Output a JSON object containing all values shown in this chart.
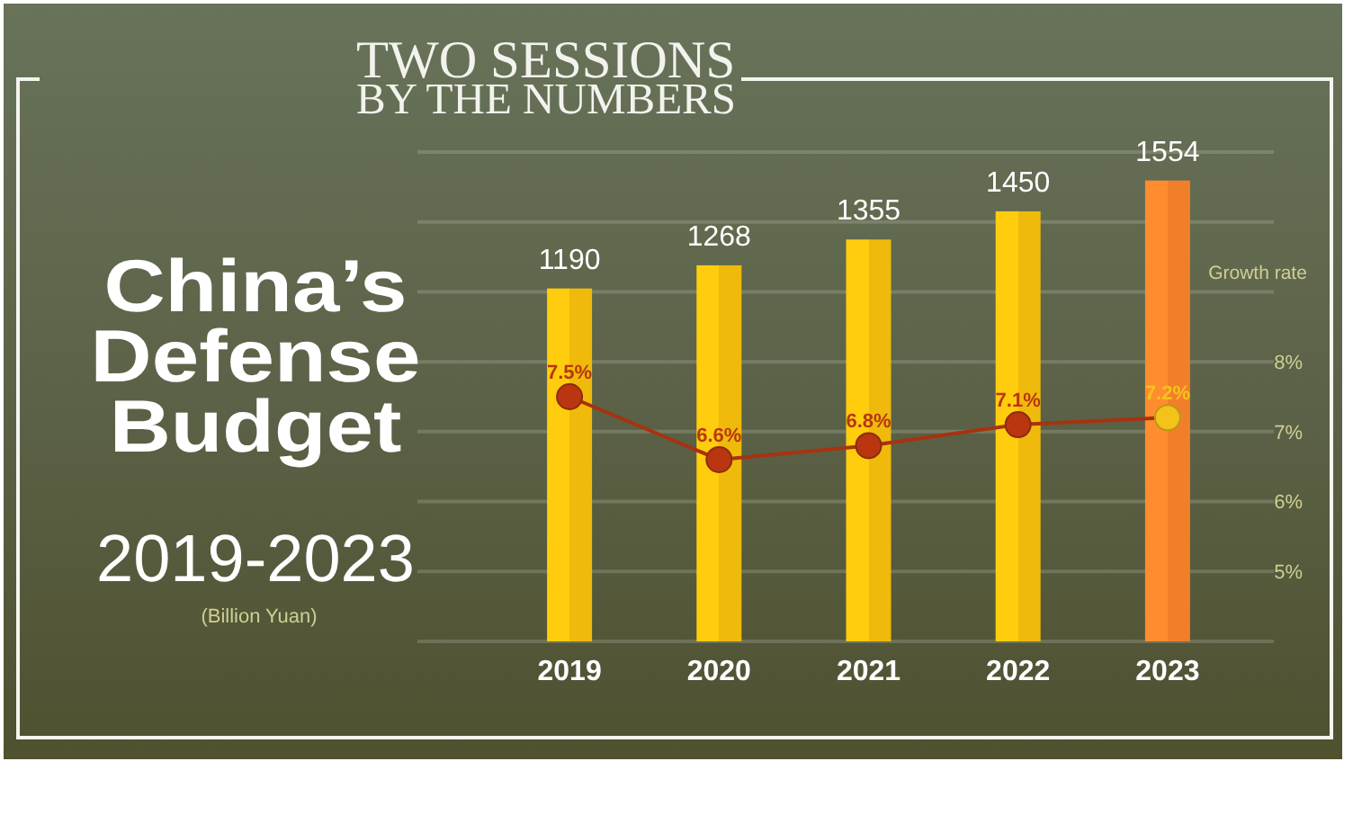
{
  "chart_data": {
    "type": "bar",
    "title": "China’s Defense Budget",
    "subtitle": "2019-2023",
    "y2label": "Growth rate",
    "annotations": [
      "TWO SESSIONS BY THE NUMBERS",
      "(Billion Yuan)"
    ],
    "categories": [
      "2019",
      "2020",
      "2021",
      "2022",
      "2023"
    ],
    "series": [
      {
        "colors": [
          "#fcc40c",
          "#fcc40c",
          "#fcc40c",
          "#fcc40c",
          "#fe862c"
        ],
        "values": [
          1190,
          1268,
          1355,
          1450,
          1554
        ]
      },
      {
        "type": "line",
        "axis": "y2",
        "color": "#a8320f",
        "colors": [
          "#b93611",
          "#b93611",
          "#b93611",
          "#b93611",
          "#f4c31a"
        ],
        "values": [
          7.5,
          6.6,
          6.8,
          7.1,
          7.2
        ],
        "value_labels": [
          "7.5%",
          "6.6%",
          "6.8%",
          "7.1%",
          "7.2%"
        ]
      }
    ],
    "ylim": [
      0,
      1650
    ],
    "y2lim": [
      4,
      11
    ],
    "y2ticks": [
      {
        "value": 4,
        "label": null
      },
      {
        "value": 5,
        "label": "5%"
      },
      {
        "value": 6,
        "label": "6%"
      },
      {
        "value": 7,
        "label": "7%"
      },
      {
        "value": 8,
        "label": "8%"
      },
      {
        "value": 9,
        "label": null
      },
      {
        "value": 10,
        "label": null
      },
      {
        "value": 11,
        "label": null
      }
    ],
    "grid": true,
    "data_labels": true,
    "marker": "circle"
  }
}
